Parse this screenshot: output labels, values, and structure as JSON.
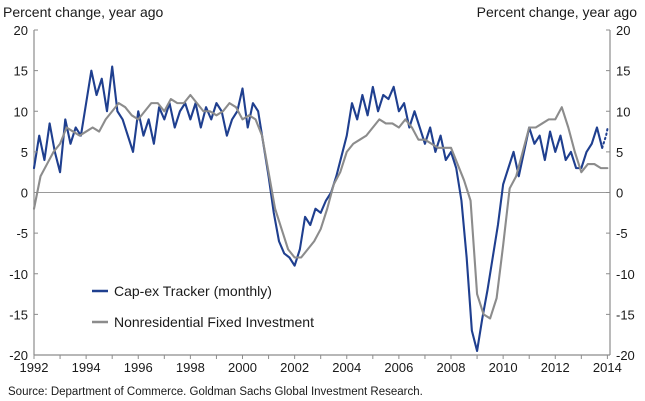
{
  "colors": {
    "capex": "#1f3f8f",
    "nonres": "#8c8c8c",
    "axis": "#8c8c8c",
    "zero_line": "#9a9a9a"
  },
  "chart_data": {
    "type": "line",
    "ylabel_left": "Percent change, year ago",
    "ylabel_right": "Percent change, year ago",
    "xlim": [
      1992,
      2014.1
    ],
    "ylim": [
      -20,
      20
    ],
    "x_ticks": [
      "1992",
      "1994",
      "1996",
      "1998",
      "2000",
      "2002",
      "2004",
      "2006",
      "2008",
      "2010",
      "2012",
      "2014"
    ],
    "y_ticks": [
      "20",
      "15",
      "10",
      "5",
      "0",
      "-5",
      "-10",
      "-15",
      "-20"
    ],
    "source": "Source: Department of Commerce. Goldman Sachs Global Investment Research.",
    "legend_position": "bottom-left",
    "series": [
      {
        "name": "Cap-ex Tracker (monthly)",
        "color": "#1f3f8f",
        "style": "solid",
        "points": [
          [
            1992.0,
            3.0
          ],
          [
            1992.2,
            7.0
          ],
          [
            1992.4,
            4.0
          ],
          [
            1992.6,
            8.5
          ],
          [
            1992.8,
            5.0
          ],
          [
            1993.0,
            2.5
          ],
          [
            1993.2,
            9.0
          ],
          [
            1993.4,
            6.0
          ],
          [
            1993.6,
            8.0
          ],
          [
            1993.8,
            7.0
          ],
          [
            1994.0,
            11.0
          ],
          [
            1994.2,
            15.0
          ],
          [
            1994.4,
            12.0
          ],
          [
            1994.6,
            14.0
          ],
          [
            1994.8,
            10.0
          ],
          [
            1995.0,
            15.5
          ],
          [
            1995.2,
            10.0
          ],
          [
            1995.4,
            9.0
          ],
          [
            1995.6,
            7.0
          ],
          [
            1995.8,
            5.0
          ],
          [
            1996.0,
            10.0
          ],
          [
            1996.2,
            7.0
          ],
          [
            1996.4,
            9.0
          ],
          [
            1996.6,
            6.0
          ],
          [
            1996.8,
            10.5
          ],
          [
            1997.0,
            9.0
          ],
          [
            1997.2,
            11.0
          ],
          [
            1997.4,
            8.0
          ],
          [
            1997.6,
            10.0
          ],
          [
            1997.8,
            11.0
          ],
          [
            1998.0,
            9.0
          ],
          [
            1998.2,
            11.0
          ],
          [
            1998.4,
            8.0
          ],
          [
            1998.6,
            10.5
          ],
          [
            1998.8,
            9.0
          ],
          [
            1999.0,
            11.0
          ],
          [
            1999.2,
            10.0
          ],
          [
            1999.4,
            7.0
          ],
          [
            1999.6,
            9.0
          ],
          [
            1999.8,
            10.0
          ],
          [
            2000.0,
            12.8
          ],
          [
            2000.2,
            8.0
          ],
          [
            2000.4,
            11.0
          ],
          [
            2000.6,
            10.0
          ],
          [
            2000.8,
            6.0
          ],
          [
            2001.0,
            2.0
          ],
          [
            2001.2,
            -2.5
          ],
          [
            2001.4,
            -6.0
          ],
          [
            2001.6,
            -7.5
          ],
          [
            2001.8,
            -8.0
          ],
          [
            2002.0,
            -9.0
          ],
          [
            2002.2,
            -7.0
          ],
          [
            2002.4,
            -3.0
          ],
          [
            2002.6,
            -4.0
          ],
          [
            2002.8,
            -2.0
          ],
          [
            2003.0,
            -2.5
          ],
          [
            2003.2,
            -1.0
          ],
          [
            2003.4,
            0.0
          ],
          [
            2003.6,
            2.0
          ],
          [
            2003.8,
            4.5
          ],
          [
            2004.0,
            7.0
          ],
          [
            2004.2,
            11.0
          ],
          [
            2004.4,
            9.0
          ],
          [
            2004.6,
            12.0
          ],
          [
            2004.8,
            9.5
          ],
          [
            2005.0,
            13.0
          ],
          [
            2005.2,
            10.0
          ],
          [
            2005.4,
            12.0
          ],
          [
            2005.6,
            11.5
          ],
          [
            2005.8,
            13.0
          ],
          [
            2006.0,
            10.0
          ],
          [
            2006.2,
            11.0
          ],
          [
            2006.4,
            8.0
          ],
          [
            2006.6,
            10.0
          ],
          [
            2006.8,
            8.0
          ],
          [
            2007.0,
            6.0
          ],
          [
            2007.2,
            8.0
          ],
          [
            2007.4,
            5.0
          ],
          [
            2007.6,
            7.0
          ],
          [
            2007.8,
            4.0
          ],
          [
            2008.0,
            5.0
          ],
          [
            2008.2,
            3.0
          ],
          [
            2008.4,
            -1.0
          ],
          [
            2008.6,
            -8.0
          ],
          [
            2008.8,
            -17.0
          ],
          [
            2009.0,
            -19.5
          ],
          [
            2009.2,
            -15.5
          ],
          [
            2009.4,
            -12.0
          ],
          [
            2009.6,
            -8.0
          ],
          [
            2009.8,
            -4.0
          ],
          [
            2010.0,
            1.0
          ],
          [
            2010.2,
            3.0
          ],
          [
            2010.4,
            5.0
          ],
          [
            2010.6,
            2.0
          ],
          [
            2010.8,
            5.0
          ],
          [
            2011.0,
            8.0
          ],
          [
            2011.2,
            6.0
          ],
          [
            2011.4,
            7.0
          ],
          [
            2011.6,
            4.0
          ],
          [
            2011.8,
            7.5
          ],
          [
            2012.0,
            5.0
          ],
          [
            2012.2,
            7.0
          ],
          [
            2012.4,
            4.0
          ],
          [
            2012.6,
            5.0
          ],
          [
            2012.8,
            3.0
          ],
          [
            2013.0,
            3.0
          ],
          [
            2013.2,
            5.0
          ],
          [
            2013.4,
            6.0
          ],
          [
            2013.6,
            8.0
          ],
          [
            2013.8,
            5.5
          ]
        ]
      },
      {
        "name": "Cap-ex Tracker (monthly)",
        "color": "#1f3f8f",
        "style": "dotted",
        "points": [
          [
            2013.8,
            5.5
          ],
          [
            2013.95,
            7.0
          ],
          [
            2014.0,
            7.8
          ]
        ]
      },
      {
        "name": "Nonresidential Fixed Investment",
        "color": "#8c8c8c",
        "style": "solid",
        "points": [
          [
            1992.0,
            -2.0
          ],
          [
            1992.25,
            2.0
          ],
          [
            1992.5,
            3.5
          ],
          [
            1992.75,
            5.0
          ],
          [
            1993.0,
            6.0
          ],
          [
            1993.25,
            8.0
          ],
          [
            1993.5,
            7.5
          ],
          [
            1993.75,
            7.0
          ],
          [
            1994.0,
            7.5
          ],
          [
            1994.25,
            8.0
          ],
          [
            1994.5,
            7.5
          ],
          [
            1994.75,
            9.0
          ],
          [
            1995.0,
            10.0
          ],
          [
            1995.25,
            11.0
          ],
          [
            1995.5,
            10.5
          ],
          [
            1995.75,
            9.5
          ],
          [
            1996.0,
            9.0
          ],
          [
            1996.25,
            10.0
          ],
          [
            1996.5,
            11.0
          ],
          [
            1996.75,
            11.0
          ],
          [
            1997.0,
            10.0
          ],
          [
            1997.25,
            11.5
          ],
          [
            1997.5,
            11.0
          ],
          [
            1997.75,
            11.0
          ],
          [
            1998.0,
            12.0
          ],
          [
            1998.25,
            11.0
          ],
          [
            1998.5,
            10.0
          ],
          [
            1998.75,
            10.0
          ],
          [
            1999.0,
            9.5
          ],
          [
            1999.25,
            10.0
          ],
          [
            1999.5,
            11.0
          ],
          [
            1999.75,
            10.5
          ],
          [
            2000.0,
            9.0
          ],
          [
            2000.25,
            9.5
          ],
          [
            2000.5,
            9.0
          ],
          [
            2000.75,
            7.0
          ],
          [
            2001.0,
            2.5
          ],
          [
            2001.25,
            -2.0
          ],
          [
            2001.5,
            -4.5
          ],
          [
            2001.75,
            -7.0
          ],
          [
            2002.0,
            -8.0
          ],
          [
            2002.25,
            -8.0
          ],
          [
            2002.5,
            -7.0
          ],
          [
            2002.75,
            -6.0
          ],
          [
            2003.0,
            -4.5
          ],
          [
            2003.25,
            -2.0
          ],
          [
            2003.5,
            1.0
          ],
          [
            2003.75,
            2.5
          ],
          [
            2004.0,
            5.0
          ],
          [
            2004.25,
            6.0
          ],
          [
            2004.5,
            6.5
          ],
          [
            2004.75,
            7.0
          ],
          [
            2005.0,
            8.0
          ],
          [
            2005.25,
            9.0
          ],
          [
            2005.5,
            8.5
          ],
          [
            2005.75,
            8.5
          ],
          [
            2006.0,
            8.0
          ],
          [
            2006.25,
            9.0
          ],
          [
            2006.5,
            8.0
          ],
          [
            2006.75,
            6.5
          ],
          [
            2007.0,
            6.5
          ],
          [
            2007.25,
            6.0
          ],
          [
            2007.5,
            5.5
          ],
          [
            2007.75,
            5.5
          ],
          [
            2008.0,
            5.5
          ],
          [
            2008.25,
            3.5
          ],
          [
            2008.5,
            1.5
          ],
          [
            2008.75,
            -1.0
          ],
          [
            2009.0,
            -12.5
          ],
          [
            2009.25,
            -15.0
          ],
          [
            2009.5,
            -15.5
          ],
          [
            2009.75,
            -13.0
          ],
          [
            2010.0,
            -6.5
          ],
          [
            2010.25,
            0.5
          ],
          [
            2010.5,
            2.0
          ],
          [
            2010.75,
            5.0
          ],
          [
            2011.0,
            8.0
          ],
          [
            2011.25,
            8.0
          ],
          [
            2011.5,
            8.5
          ],
          [
            2011.75,
            9.0
          ],
          [
            2012.0,
            9.0
          ],
          [
            2012.25,
            10.5
          ],
          [
            2012.5,
            8.0
          ],
          [
            2012.75,
            5.0
          ],
          [
            2013.0,
            2.5
          ],
          [
            2013.25,
            3.5
          ],
          [
            2013.5,
            3.5
          ],
          [
            2013.75,
            3.0
          ],
          [
            2014.0,
            3.0
          ]
        ]
      }
    ],
    "legend": [
      {
        "label": "Cap-ex Tracker (monthly)",
        "color": "#1f3f8f"
      },
      {
        "label": "Nonresidential Fixed Investment",
        "color": "#8c8c8c"
      }
    ]
  }
}
